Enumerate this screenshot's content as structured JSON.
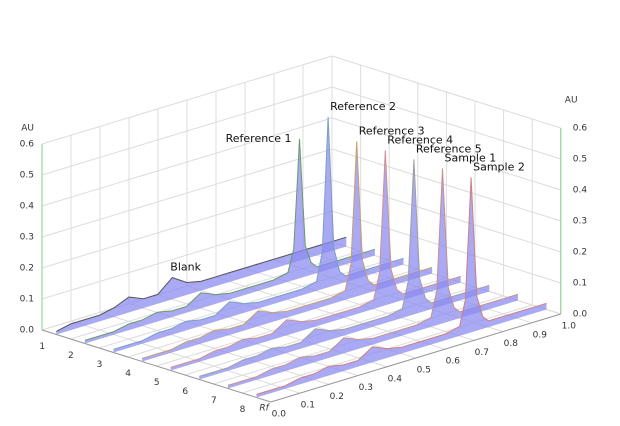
{
  "chart_data": {
    "type": "3d-densitogram",
    "z_axis_label": "AU",
    "x_axis_label": "Rf",
    "categories": [
      "1",
      "2",
      "3",
      "4",
      "5",
      "6",
      "7",
      "8"
    ],
    "x": [
      0.0,
      0.05,
      0.1,
      0.15,
      0.2,
      0.25,
      0.3,
      0.35,
      0.4,
      0.45,
      0.5,
      0.55,
      0.6,
      0.65,
      0.7,
      0.72,
      0.73,
      0.74,
      0.75,
      0.76,
      0.78,
      0.8,
      0.85,
      0.9,
      0.95,
      1.0
    ],
    "xlim": [
      0,
      1
    ],
    "xticks": [
      {
        "value": 0,
        "label": "0.0"
      },
      0.1,
      0.2,
      0.3,
      0.4,
      0.5,
      0.6,
      0.7,
      0.8,
      0.9,
      {
        "value": 1,
        "label": "1.0"
      }
    ],
    "ylim": [
      0,
      0.6
    ],
    "yticks": [
      {
        "value": 0,
        "label": "0.0"
      },
      0.1,
      0.2,
      0.3,
      0.4,
      0.5,
      0.6
    ],
    "grid": true,
    "peak_fill": "#8c8cf0",
    "series": [
      {
        "name": "Blank",
        "color": "#555555",
        "values": [
          0.01,
          0.02,
          0.02,
          0.02,
          0.03,
          0.05,
          0.03,
          0.03,
          0.07,
          0.04,
          0.03,
          0.03,
          0.03,
          0.03,
          0.03,
          0.03,
          0.03,
          0.03,
          0.03,
          0.03,
          0.03,
          0.03,
          0.03,
          0.03,
          0.03,
          0.03
        ]
      },
      {
        "name": "Reference 1",
        "color": "#6a9a6a",
        "values": [
          0.01,
          0.01,
          0.01,
          0.02,
          0.02,
          0.03,
          0.02,
          0.02,
          0.05,
          0.03,
          0.02,
          0.02,
          0.02,
          0.02,
          0.03,
          0.1,
          0.27,
          0.45,
          0.27,
          0.1,
          0.04,
          0.02,
          0.02,
          0.02,
          0.02,
          0.02
        ]
      },
      {
        "name": "Reference 2",
        "color": "#7aa0c0",
        "values": [
          0.01,
          0.01,
          0.01,
          0.02,
          0.02,
          0.03,
          0.02,
          0.02,
          0.05,
          0.03,
          0.02,
          0.02,
          0.02,
          0.02,
          0.03,
          0.12,
          0.33,
          0.55,
          0.33,
          0.12,
          0.04,
          0.02,
          0.02,
          0.02,
          0.02,
          0.02
        ]
      },
      {
        "name": "Reference 3",
        "color": "#c8a070",
        "values": [
          0.01,
          0.01,
          0.01,
          0.02,
          0.02,
          0.03,
          0.02,
          0.02,
          0.05,
          0.03,
          0.02,
          0.02,
          0.02,
          0.02,
          0.03,
          0.11,
          0.3,
          0.5,
          0.3,
          0.11,
          0.04,
          0.02,
          0.02,
          0.02,
          0.02,
          0.02
        ]
      },
      {
        "name": "Reference 4",
        "color": "#d49090",
        "values": [
          0.01,
          0.01,
          0.01,
          0.02,
          0.02,
          0.03,
          0.02,
          0.02,
          0.05,
          0.03,
          0.02,
          0.02,
          0.02,
          0.02,
          0.03,
          0.11,
          0.3,
          0.5,
          0.3,
          0.11,
          0.04,
          0.02,
          0.02,
          0.02,
          0.02,
          0.02
        ]
      },
      {
        "name": "Reference 5",
        "color": "#a0a0a0",
        "values": [
          0.01,
          0.01,
          0.01,
          0.02,
          0.02,
          0.03,
          0.02,
          0.02,
          0.05,
          0.03,
          0.02,
          0.02,
          0.02,
          0.02,
          0.03,
          0.11,
          0.3,
          0.5,
          0.3,
          0.11,
          0.04,
          0.02,
          0.02,
          0.02,
          0.02,
          0.02
        ]
      },
      {
        "name": "Sample 1",
        "color": "#c89090",
        "values": [
          0.01,
          0.01,
          0.01,
          0.02,
          0.02,
          0.03,
          0.02,
          0.02,
          0.05,
          0.03,
          0.02,
          0.02,
          0.02,
          0.02,
          0.03,
          0.11,
          0.3,
          0.5,
          0.3,
          0.11,
          0.04,
          0.02,
          0.02,
          0.02,
          0.02,
          0.02
        ]
      },
      {
        "name": "Sample 2",
        "color": "#d08080",
        "values": [
          0.01,
          0.01,
          0.01,
          0.02,
          0.02,
          0.03,
          0.02,
          0.02,
          0.05,
          0.03,
          0.02,
          0.02,
          0.02,
          0.02,
          0.03,
          0.11,
          0.3,
          0.5,
          0.3,
          0.11,
          0.04,
          0.02,
          0.02,
          0.02,
          0.02,
          0.02
        ]
      }
    ]
  }
}
